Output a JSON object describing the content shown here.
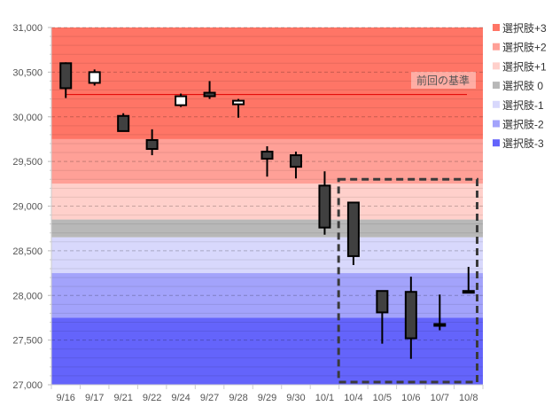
{
  "chart_data": {
    "type": "candlestick",
    "title": "",
    "ylim": [
      27000,
      31000
    ],
    "yticks": [
      "27,000",
      "27,500",
      "28,000",
      "28,500",
      "29,000",
      "29,500",
      "30,000",
      "30,500",
      "31,000"
    ],
    "ytick_values": [
      27000,
      27500,
      28000,
      28500,
      29000,
      29500,
      30000,
      30500,
      31000
    ],
    "categories": [
      "9/16",
      "9/17",
      "9/21",
      "9/22",
      "9/24",
      "9/27",
      "9/28",
      "9/29",
      "9/30",
      "10/1",
      "10/4",
      "10/5",
      "10/6",
      "10/7",
      "10/8"
    ],
    "ohlc": [
      [
        30600,
        30610,
        30210,
        30320
      ],
      [
        30380,
        30530,
        30350,
        30500
      ],
      [
        30010,
        30040,
        29840,
        29840
      ],
      [
        29740,
        29860,
        29570,
        29640
      ],
      [
        30130,
        30260,
        30110,
        30230
      ],
      [
        30270,
        30400,
        30200,
        30230
      ],
      [
        30140,
        30200,
        29990,
        30180
      ],
      [
        29610,
        29670,
        29330,
        29530
      ],
      [
        29570,
        29610,
        29310,
        29440
      ],
      [
        29230,
        29390,
        28680,
        28760
      ],
      [
        29040,
        29040,
        28340,
        28440
      ],
      [
        28050,
        28050,
        27460,
        27810
      ],
      [
        28040,
        28210,
        27290,
        27520
      ],
      [
        27680,
        28010,
        27610,
        27660
      ],
      [
        28050,
        28320,
        28030,
        28030
      ]
    ],
    "bands": [
      {
        "name": "選択肢+3",
        "from": 29750,
        "to": 31000,
        "color": "#ff7566"
      },
      {
        "name": "選択肢+2",
        "from": 29250,
        "to": 29750,
        "color": "#ffa097"
      },
      {
        "name": "選択肢+1",
        "from": 28850,
        "to": 29250,
        "color": "#ffd0cb"
      },
      {
        "name": "選択肢 0",
        "from": 28650,
        "to": 28850,
        "color": "#b8b8b8"
      },
      {
        "name": "選択肢-1",
        "from": 28250,
        "to": 28650,
        "color": "#d8d8fc"
      },
      {
        "name": "選択肢-2",
        "from": 27750,
        "to": 28250,
        "color": "#a3a3fb"
      },
      {
        "name": "選択肢-3",
        "from": 27000,
        "to": 27750,
        "color": "#6464fb"
      }
    ],
    "reference_line": {
      "value": 30250,
      "label": "前回の基準",
      "color": "#e00000"
    },
    "highlight": {
      "from_category": "10/4",
      "to_category": "10/8",
      "low": 27000,
      "high": 29300
    },
    "legend_position": "right",
    "grid": true
  }
}
